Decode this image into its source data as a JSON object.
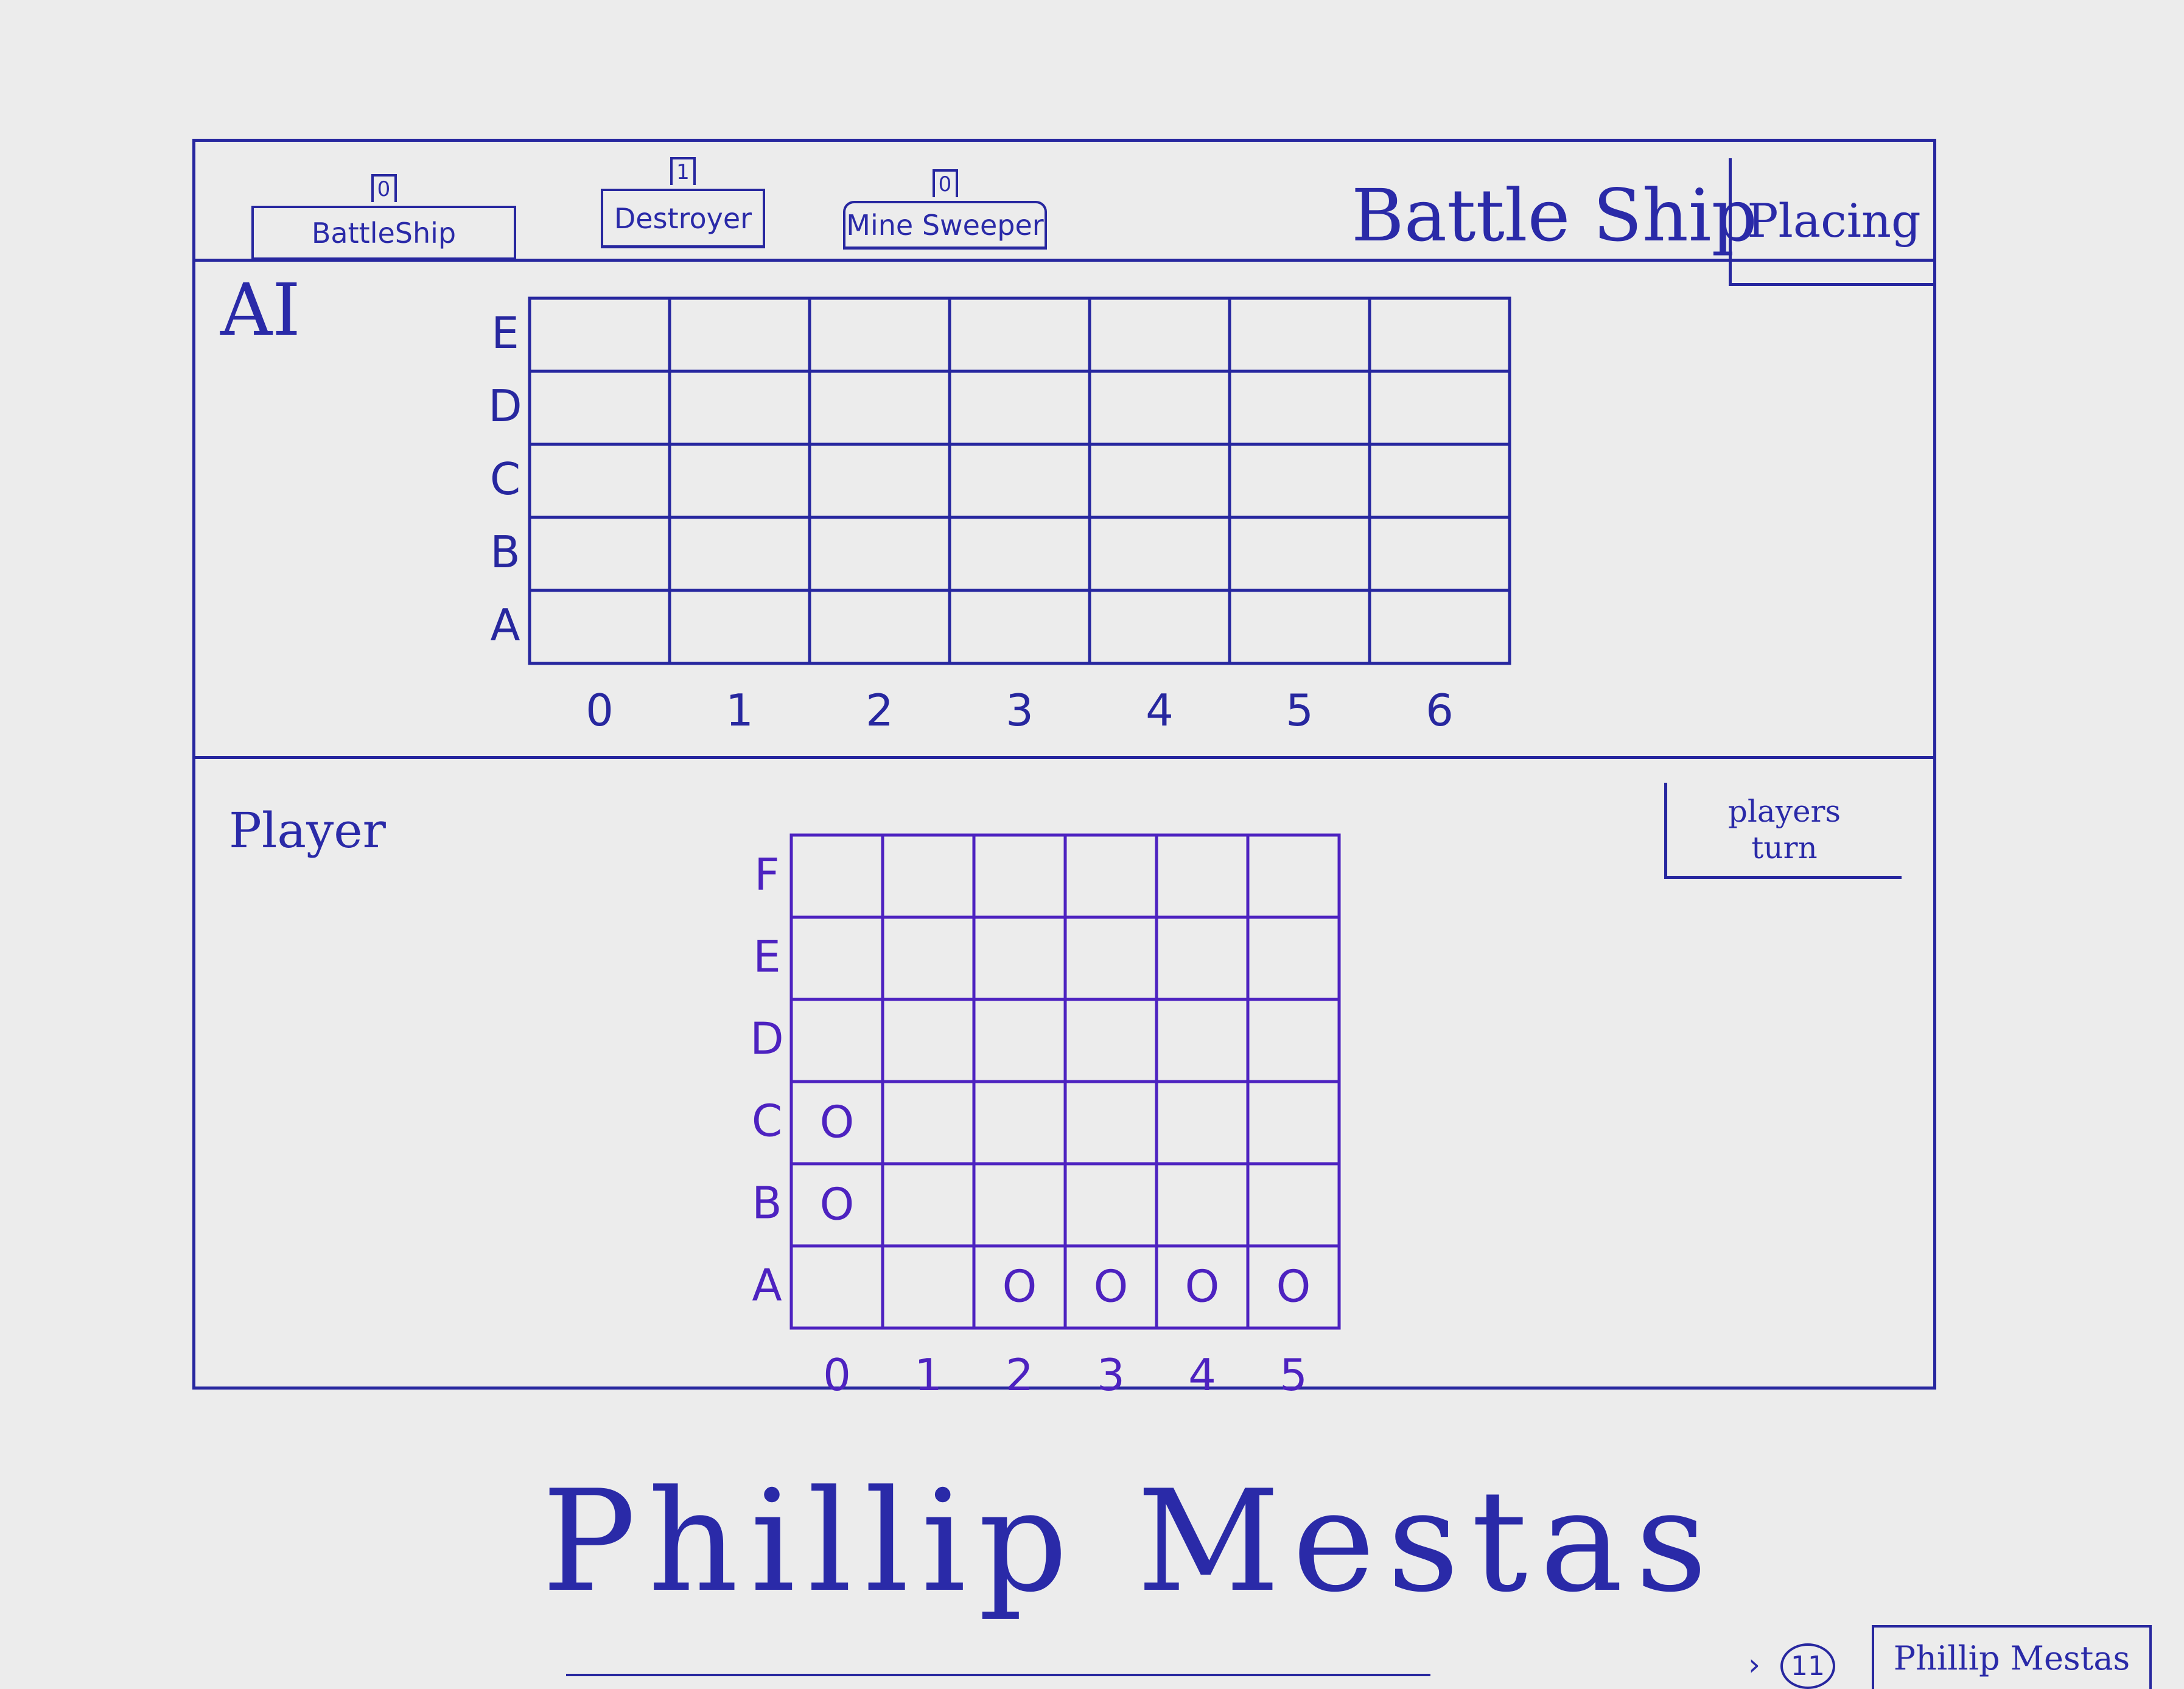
{
  "header": {
    "title": "Battle Ship",
    "status": "Placing",
    "ships": [
      {
        "label": "BattleShip",
        "count": "0"
      },
      {
        "label": "Destroyer",
        "count": "1"
      },
      {
        "label": "Mine Sweeper",
        "count": "0"
      }
    ]
  },
  "ai_board": {
    "label": "AI",
    "rows": [
      "E",
      "D",
      "C",
      "B",
      "A"
    ],
    "cols": [
      "0",
      "1",
      "2",
      "3",
      "4",
      "5",
      "6"
    ]
  },
  "player_board": {
    "label": "Player",
    "turn_indicator": "players turn",
    "rows": [
      "F",
      "E",
      "D",
      "C",
      "B",
      "A"
    ],
    "cols": [
      "0",
      "1",
      "2",
      "3",
      "4",
      "5"
    ],
    "markers": [
      {
        "row": "C",
        "col": "0",
        "mark": "O"
      },
      {
        "row": "B",
        "col": "0",
        "mark": "O"
      },
      {
        "row": "A",
        "col": "2",
        "mark": "O"
      },
      {
        "row": "A",
        "col": "3",
        "mark": "O"
      },
      {
        "row": "A",
        "col": "4",
        "mark": "O"
      },
      {
        "row": "A",
        "col": "5",
        "mark": "O"
      }
    ]
  },
  "footer": {
    "signature": "Phillip Mestas",
    "page_number": "11",
    "name_box": "Phillip Mestas"
  }
}
